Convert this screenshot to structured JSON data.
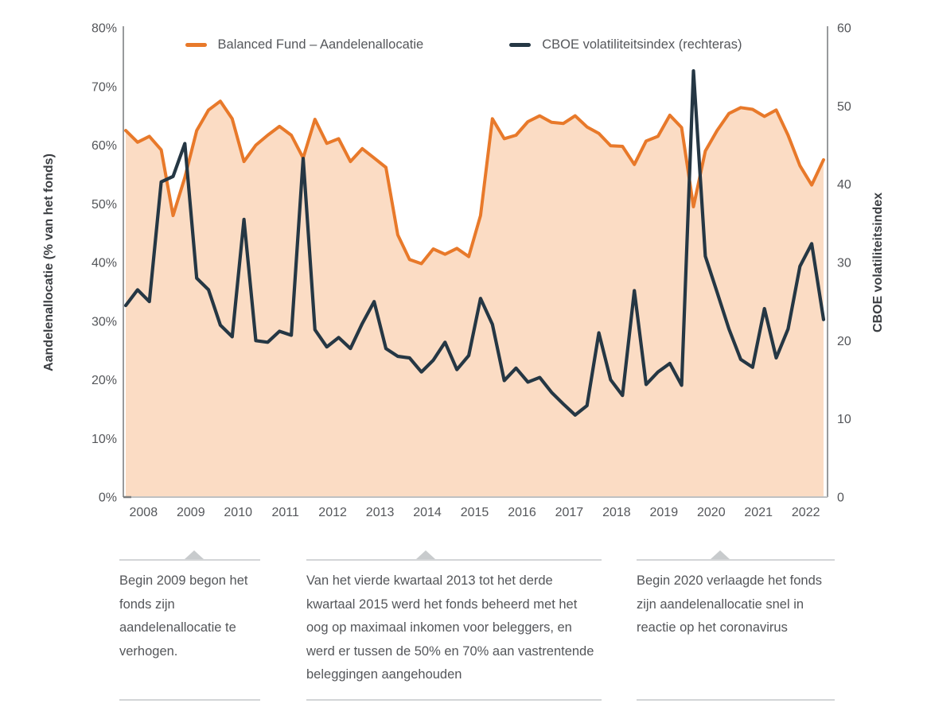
{
  "legend": {
    "items": [
      {
        "label": "Balanced Fund – Aandelenallocatie",
        "color": "#E8792A"
      },
      {
        "label": "CBOE volatiliteitsindex (rechteras)",
        "color": "#253744"
      }
    ]
  },
  "chart_data": {
    "type": "area",
    "title": "",
    "grid": false,
    "legend_position": "top-center",
    "x_frequency": "quarterly",
    "x_years": [
      "2008",
      "2009",
      "2010",
      "2011",
      "2012",
      "2013",
      "2014",
      "2015",
      "2016",
      "2017",
      "2018",
      "2019",
      "2020",
      "2021",
      "2022"
    ],
    "left_axis": {
      "title": "Aandelenallocatie (% van het fonds)",
      "min": 0,
      "max": 80,
      "tick_labels": [
        "80%",
        "70%",
        "60%",
        "50%",
        "40%",
        "30%",
        "20%",
        "10%",
        "0%"
      ]
    },
    "right_axis": {
      "title": "CBOE volatiliteitsindex",
      "min": 0,
      "max": 60,
      "tick_labels": [
        "60",
        "50",
        "40",
        "30",
        "20",
        "10",
        "0"
      ]
    },
    "series": [
      {
        "name": "Balanced Fund – Aandelenallocatie",
        "axis": "left",
        "type": "area-line",
        "color": "#E8792A",
        "fill": "#FBDCC4",
        "values": [
          62.5,
          60.5,
          61.5,
          59.2,
          48.0,
          54.5,
          62.5,
          66.0,
          67.5,
          64.5,
          57.2,
          60.0,
          61.7,
          63.2,
          61.7,
          57.8,
          64.4,
          60.3,
          61.1,
          57.2,
          59.4,
          57.8,
          56.2,
          44.7,
          40.5,
          39.8,
          42.3,
          41.4,
          42.4,
          41.0,
          48.0,
          64.5,
          61.1,
          61.7,
          64.0,
          65.0,
          63.9,
          63.7,
          65.0,
          63.1,
          62.0,
          59.9,
          59.8,
          56.7,
          60.7,
          61.5,
          65.1,
          63.0,
          49.5,
          59.0,
          62.5,
          65.4,
          66.4,
          66.1,
          64.9,
          66.0,
          61.7,
          56.5,
          53.2,
          57.5
        ]
      },
      {
        "name": "CBOE volatiliteitsindex (rechteras)",
        "axis": "right",
        "type": "line",
        "color": "#253744",
        "values": [
          24.5,
          26.5,
          25.0,
          40.3,
          41.0,
          45.2,
          28.0,
          26.5,
          22.0,
          20.5,
          35.5,
          20.0,
          19.8,
          21.2,
          20.7,
          43.3,
          21.4,
          19.2,
          20.4,
          19.0,
          22.2,
          25.0,
          19.0,
          18.0,
          17.8,
          16.0,
          17.5,
          19.8,
          16.3,
          18.1,
          25.4,
          22.1,
          14.9,
          16.5,
          14.7,
          15.3,
          13.4,
          11.9,
          10.5,
          11.7,
          21.0,
          15.0,
          13.0,
          26.4,
          14.4,
          16.0,
          17.1,
          14.3,
          54.5,
          30.8,
          26.2,
          21.5,
          17.6,
          16.6,
          24.1,
          17.8,
          21.5,
          29.5,
          32.4,
          22.7
        ]
      }
    ]
  },
  "annotations": [
    {
      "text": "Begin 2009 begon het fonds zijn aandelenallocatie te verhogen."
    },
    {
      "text": "Van het vierde kwartaal 2013 tot het derde kwartaal 2015 werd het fonds beheerd met het oog op maximaal inkomen voor beleggers, en werd er tussen de 50% en 70% aan vastrentende beleggingen aangehouden"
    },
    {
      "text": "Begin 2020 verlaagde het fonds zijn aandelenallocatie snel in reactie op het coronavirus"
    }
  ]
}
